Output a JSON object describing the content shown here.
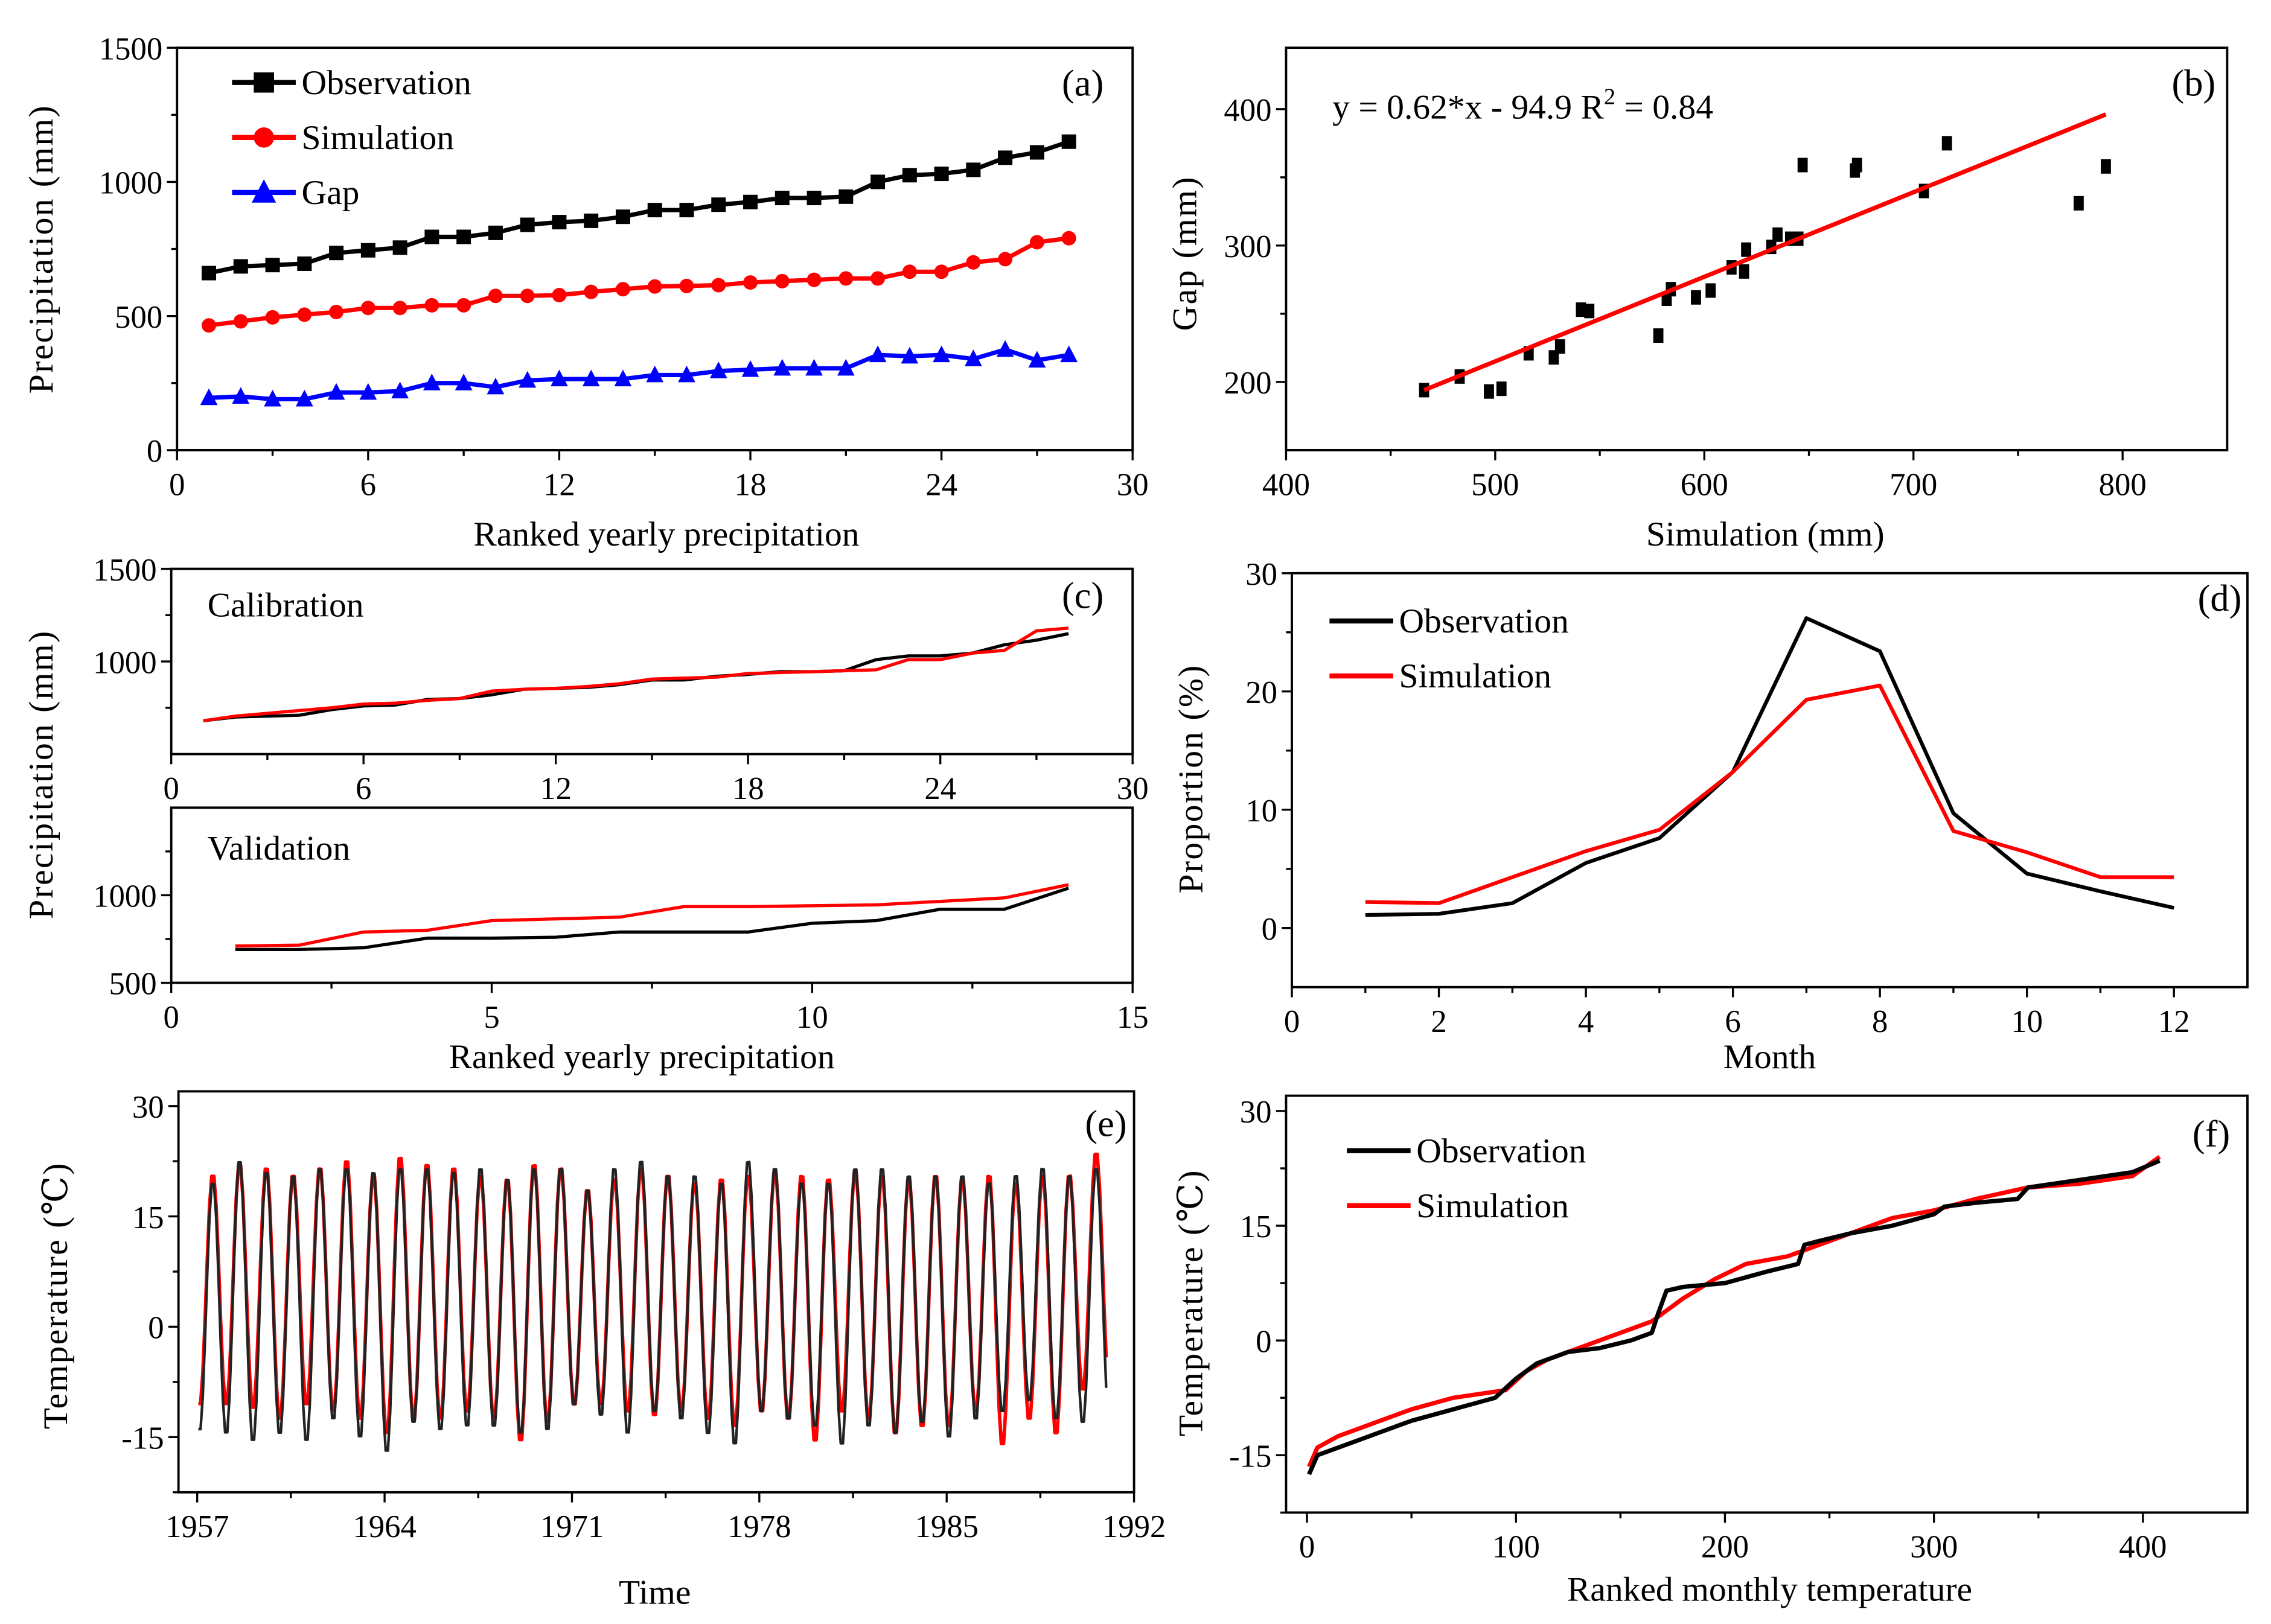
{
  "figure": {
    "panels": [
      "a",
      "b",
      "c",
      "d",
      "e",
      "f"
    ]
  },
  "chart_data": [
    {
      "id": "a",
      "type": "line",
      "panel_label": "(a)",
      "xlabel": "Ranked yearly precipitation",
      "ylabel": "Precipitation (mm)",
      "xlim": [
        0,
        30
      ],
      "ylim": [
        0,
        1500
      ],
      "xticks": [
        0,
        6,
        12,
        18,
        24,
        30
      ],
      "yticks": [
        0,
        500,
        1000,
        1500
      ],
      "legend_position": "top-left",
      "x": [
        1,
        2,
        3,
        4,
        5,
        6,
        7,
        8,
        9,
        10,
        11,
        12,
        13,
        14,
        15,
        16,
        17,
        18,
        19,
        20,
        21,
        22,
        23,
        24,
        25,
        26,
        27,
        28
      ],
      "series": [
        {
          "name": "Observation",
          "color": "#000000",
          "marker": "square",
          "values": [
            660,
            685,
            690,
            695,
            735,
            745,
            755,
            795,
            795,
            810,
            840,
            850,
            855,
            870,
            895,
            895,
            915,
            925,
            940,
            940,
            945,
            1000,
            1025,
            1030,
            1045,
            1090,
            1110,
            1150
          ]
        },
        {
          "name": "Simulation",
          "color": "#ff0000",
          "marker": "circle",
          "values": [
            465,
            480,
            495,
            505,
            515,
            530,
            530,
            540,
            540,
            575,
            575,
            578,
            590,
            600,
            610,
            612,
            615,
            625,
            630,
            635,
            640,
            640,
            665,
            665,
            700,
            712,
            775,
            790
          ]
        },
        {
          "name": "Gap",
          "color": "#0000ff",
          "marker": "triangle",
          "values": [
            195,
            200,
            190,
            190,
            215,
            215,
            220,
            250,
            250,
            235,
            260,
            265,
            265,
            265,
            280,
            280,
            295,
            300,
            305,
            305,
            305,
            355,
            350,
            355,
            340,
            375,
            335,
            355
          ]
        }
      ]
    },
    {
      "id": "b",
      "type": "scatter",
      "panel_label": "(b)",
      "xlabel": "Simulation (mm)",
      "ylabel": "Gap (mm)",
      "xlim": [
        400,
        850
      ],
      "ylim": [
        150,
        445
      ],
      "xticks": [
        400,
        500,
        600,
        700,
        800
      ],
      "yticks": [
        200,
        300,
        400
      ],
      "annotation": "y = 0.62*x - 94.9  R",
      "annotation_sup": "2",
      "annotation_tail": " = 0.84",
      "fit": {
        "slope": 0.62,
        "intercept": -94.9,
        "r2": 0.84,
        "x_range": [
          466,
          792
        ],
        "color": "#ff0000"
      },
      "points": [
        [
          466,
          194
        ],
        [
          483,
          204
        ],
        [
          497,
          193
        ],
        [
          503,
          195
        ],
        [
          516,
          221
        ],
        [
          528,
          218
        ],
        [
          531,
          226
        ],
        [
          541,
          253
        ],
        [
          545,
          252
        ],
        [
          578,
          234
        ],
        [
          582,
          261
        ],
        [
          584,
          268
        ],
        [
          596,
          262
        ],
        [
          603,
          267
        ],
        [
          613,
          284
        ],
        [
          619,
          281
        ],
        [
          620,
          297
        ],
        [
          632,
          299
        ],
        [
          635,
          308
        ],
        [
          641,
          305
        ],
        [
          645,
          305
        ],
        [
          647,
          359
        ],
        [
          672,
          355
        ],
        [
          673,
          359
        ],
        [
          705,
          340
        ],
        [
          716,
          375
        ],
        [
          779,
          331
        ],
        [
          792,
          358
        ]
      ]
    },
    {
      "id": "c",
      "type": "line",
      "panel_label": "(c)",
      "ylabel": "Precipitation (mm)",
      "xlabel": "Ranked yearly precipitation",
      "subplots": [
        {
          "name": "Calibration",
          "xlim": [
            0,
            30
          ],
          "ylim": [
            500,
            1500
          ],
          "xticks": [
            0,
            6,
            12,
            18,
            24,
            30
          ],
          "yticks": [
            1000,
            1500
          ],
          "x": [
            1,
            2,
            3,
            4,
            5,
            6,
            7,
            8,
            9,
            10,
            11,
            12,
            13,
            14,
            15,
            16,
            17,
            18,
            19,
            20,
            21,
            22,
            23,
            24,
            25,
            26,
            27,
            28
          ],
          "series": [
            {
              "name": "Observation",
              "color": "#000000",
              "values": [
                680,
                700,
                705,
                710,
                740,
                760,
                765,
                795,
                800,
                820,
                850,
                855,
                860,
                875,
                900,
                900,
                920,
                930,
                945,
                945,
                950,
                1010,
                1030,
                1030,
                1045,
                1090,
                1115,
                1150
              ]
            },
            {
              "name": "Simulation",
              "color": "#ff0000",
              "values": [
                680,
                705,
                720,
                735,
                750,
                770,
                775,
                790,
                800,
                840,
                850,
                855,
                865,
                880,
                905,
                910,
                915,
                935,
                940,
                945,
                950,
                955,
                1010,
                1010,
                1045,
                1060,
                1165,
                1180
              ]
            }
          ]
        },
        {
          "name": "Validation",
          "xlim": [
            0,
            15
          ],
          "ylim": [
            500,
            1500
          ],
          "xticks": [
            0,
            5,
            10,
            15
          ],
          "yticks": [
            500,
            1000
          ],
          "x": [
            1,
            2,
            3,
            4,
            5,
            6,
            7,
            8,
            9,
            10,
            11,
            12,
            13,
            14
          ],
          "series": [
            {
              "name": "Observation",
              "color": "#000000",
              "values": [
                690,
                690,
                700,
                755,
                755,
                760,
                790,
                790,
                790,
                840,
                855,
                920,
                920,
                1040
              ]
            },
            {
              "name": "Simulation",
              "color": "#ff0000",
              "values": [
                710,
                715,
                790,
                800,
                855,
                865,
                875,
                935,
                935,
                940,
                945,
                965,
                985,
                1060
              ]
            }
          ]
        }
      ]
    },
    {
      "id": "d",
      "type": "line",
      "panel_label": "(d)",
      "xlabel": "Month",
      "ylabel": "Proportion (%)",
      "xlim": [
        0,
        13
      ],
      "ylim": [
        -5,
        30
      ],
      "xticks": [
        0,
        2,
        4,
        6,
        8,
        10,
        12
      ],
      "yticks": [
        0,
        10,
        20,
        30
      ],
      "legend_position": "top-left",
      "x": [
        1,
        2,
        3,
        4,
        5,
        6,
        7,
        8,
        9,
        10,
        11,
        12
      ],
      "series": [
        {
          "name": "Observation",
          "color": "#000000",
          "values": [
            1.1,
            1.2,
            2.1,
            5.5,
            7.6,
            13.2,
            26.2,
            23.4,
            9.7,
            4.6,
            3.1,
            1.7
          ]
        },
        {
          "name": "Simulation",
          "color": "#ff0000",
          "values": [
            2.2,
            2.1,
            4.3,
            6.5,
            8.3,
            13.2,
            19.3,
            20.5,
            8.2,
            6.4,
            4.3,
            4.3
          ]
        }
      ]
    },
    {
      "id": "e",
      "type": "line",
      "panel_label": "(e)",
      "xlabel": "Time",
      "ylabel": "Temperature (℃)",
      "xlim": [
        1956.3,
        1992
      ],
      "ylim": [
        -22.5,
        32
      ],
      "xticks": [
        1957,
        1964,
        1971,
        1978,
        1985,
        1992
      ],
      "yticks": [
        -15,
        0,
        15,
        30
      ],
      "years": [
        1957,
        1958,
        1959,
        1960,
        1961,
        1962,
        1963,
        1964,
        1965,
        1966,
        1967,
        1968,
        1969,
        1970,
        1971,
        1972,
        1973,
        1974,
        1975,
        1976,
        1977,
        1978,
        1979,
        1980,
        1981,
        1982,
        1983,
        1984,
        1985,
        1986,
        1987,
        1988,
        1989,
        1990
      ],
      "series": [
        {
          "name": "Simulation",
          "color": "#ff0000",
          "annual_max": [
            21,
            22.5,
            22,
            21,
            22,
            23,
            21,
            23.5,
            22.5,
            22,
            21,
            20.5,
            22.5,
            22,
            19,
            20.5,
            22,
            21,
            20,
            20.5,
            21,
            21.5,
            21,
            20.5,
            21.5,
            21,
            20.5,
            21,
            20.5,
            21,
            20,
            21,
            21,
            24
          ],
          "annual_min": [
            -11,
            -11,
            -11.5,
            -13,
            -11,
            -12,
            -13,
            -15,
            -13,
            -13,
            -12,
            -13,
            -16,
            -13.5,
            -11,
            -11,
            -12,
            -12.5,
            -12,
            -13,
            -14,
            -12,
            -13,
            -16,
            -12,
            -13,
            -15,
            -14,
            -14,
            -12,
            -16.5,
            -13,
            -15,
            -9
          ]
        },
        {
          "name": "Observation",
          "color": "#222222",
          "annual_max": [
            20,
            23,
            21.5,
            21,
            22,
            22,
            21.5,
            22,
            22,
            21.5,
            22,
            20.5,
            22,
            22,
            19,
            22,
            23,
            21,
            21,
            20,
            23,
            22,
            20,
            20,
            22,
            22,
            21,
            21,
            21,
            20,
            21,
            22,
            21,
            22
          ],
          "annual_min": [
            -14.5,
            -15,
            -16,
            -15,
            -16,
            -13,
            -15.5,
            -17.5,
            -13.5,
            -14.5,
            -14,
            -14,
            -15,
            -14.5,
            -11,
            -12.5,
            -15,
            -12,
            -13,
            -15,
            -16.5,
            -12,
            -13,
            -14,
            -16.5,
            -14,
            -15,
            -13.5,
            -15.5,
            -13,
            -12,
            -10.5,
            -13,
            -13.5
          ]
        }
      ]
    },
    {
      "id": "f",
      "type": "line",
      "panel_label": "(f)",
      "xlabel": "Ranked monthly temperature",
      "ylabel": "Temperature (℃)",
      "xlim": [
        -10,
        450
      ],
      "ylim": [
        -22.5,
        32
      ],
      "xticks": [
        0,
        100,
        200,
        300,
        400
      ],
      "yticks": [
        -15,
        0,
        15,
        30
      ],
      "legend_position": "top-left",
      "series": [
        {
          "name": "Observation",
          "color": "#000000",
          "points": [
            [
              1,
              -17.5
            ],
            [
              5,
              -15
            ],
            [
              15,
              -14
            ],
            [
              30,
              -12.5
            ],
            [
              50,
              -10.5
            ],
            [
              70,
              -9
            ],
            [
              90,
              -7.5
            ],
            [
              100,
              -5
            ],
            [
              110,
              -3
            ],
            [
              125,
              -1.5
            ],
            [
              140,
              -1
            ],
            [
              155,
              0
            ],
            [
              165,
              1
            ],
            [
              168,
              3.5
            ],
            [
              172,
              6.5
            ],
            [
              180,
              7
            ],
            [
              200,
              7.5
            ],
            [
              220,
              9
            ],
            [
              235,
              10
            ],
            [
              238,
              12.5
            ],
            [
              245,
              13
            ],
            [
              260,
              14
            ],
            [
              280,
              15
            ],
            [
              300,
              16.5
            ],
            [
              305,
              17.5
            ],
            [
              320,
              18
            ],
            [
              340,
              18.5
            ],
            [
              345,
              20
            ],
            [
              370,
              21
            ],
            [
              395,
              22
            ],
            [
              408,
              23.5
            ]
          ]
        },
        {
          "name": "Simulation",
          "color": "#ff0000",
          "points": [
            [
              1,
              -16.5
            ],
            [
              5,
              -14
            ],
            [
              15,
              -12.5
            ],
            [
              30,
              -11
            ],
            [
              50,
              -9
            ],
            [
              70,
              -7.5
            ],
            [
              95,
              -6.5
            ],
            [
              105,
              -4
            ],
            [
              115,
              -2.5
            ],
            [
              130,
              -1
            ],
            [
              150,
              1
            ],
            [
              165,
              2.5
            ],
            [
              180,
              5.5
            ],
            [
              195,
              8
            ],
            [
              210,
              10
            ],
            [
              230,
              11
            ],
            [
              240,
              12
            ],
            [
              260,
              14
            ],
            [
              280,
              16
            ],
            [
              300,
              17
            ],
            [
              320,
              18.5
            ],
            [
              345,
              20
            ],
            [
              370,
              20.5
            ],
            [
              395,
              21.5
            ],
            [
              408,
              24
            ]
          ]
        }
      ]
    }
  ]
}
